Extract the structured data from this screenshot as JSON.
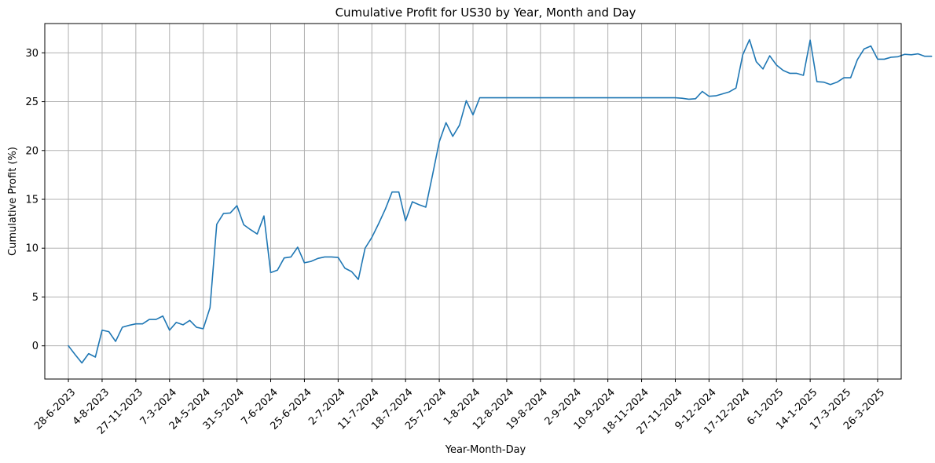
{
  "chart_data": {
    "type": "line",
    "title": "Cumulative Profit for US30 by Year, Month and Day",
    "xlabel": "Year-Month-Day",
    "ylabel": "Cumulative Profit (%)",
    "ylim": [
      -3.4,
      33.0
    ],
    "yticks": [
      0,
      5,
      10,
      15,
      20,
      25,
      30
    ],
    "grid": true,
    "line_color": "#1f77b4",
    "x_tick_positions": [
      0,
      5,
      10,
      15,
      20,
      25,
      30,
      35,
      40,
      45,
      50,
      55,
      60,
      65,
      70,
      75,
      80,
      85,
      90,
      95,
      100,
      105,
      110,
      115,
      120
    ],
    "x_tick_labels": [
      "28-6-2023",
      "4-8-2023",
      "27-11-2023",
      "7-3-2024",
      "24-5-2024",
      "31-5-2024",
      "7-6-2024",
      "25-6-2024",
      "2-7-2024",
      "11-7-2024",
      "18-7-2024",
      "25-7-2024",
      "1-8-2024",
      "12-8-2024",
      "19-8-2024",
      "2-9-2024",
      "10-9-2024",
      "18-11-2024",
      "27-11-2024",
      "9-12-2024",
      "17-12-2024",
      "6-1-2025",
      "14-1-2025",
      "17-3-2025",
      "26-3-2025"
    ],
    "xlim": [
      -3.5,
      123.5
    ],
    "series": [
      {
        "name": "",
        "values": [
          0.0,
          -0.9,
          -1.75,
          -0.8,
          -1.15,
          1.6,
          1.45,
          0.45,
          1.9,
          2.1,
          2.25,
          2.25,
          2.7,
          2.7,
          3.05,
          1.6,
          2.4,
          2.15,
          2.6,
          1.9,
          1.75,
          3.9,
          12.45,
          13.55,
          13.6,
          14.35,
          12.4,
          11.9,
          11.45,
          13.3,
          7.5,
          7.75,
          9.0,
          9.1,
          10.1,
          8.5,
          8.65,
          8.95,
          9.1,
          9.1,
          9.05,
          7.95,
          7.6,
          6.8,
          10.0,
          11.1,
          12.5,
          14.0,
          15.75,
          15.75,
          12.8,
          14.75,
          14.45,
          14.2,
          17.5,
          20.9,
          22.85,
          21.45,
          22.6,
          25.1,
          23.65,
          25.4,
          25.4,
          25.4,
          25.4,
          25.4,
          25.4,
          25.4,
          25.4,
          25.4,
          25.4,
          25.4,
          25.4,
          25.4,
          25.4,
          25.4,
          25.4,
          25.4,
          25.4,
          25.4,
          25.4,
          25.4,
          25.4,
          25.4,
          25.4,
          25.4,
          25.4,
          25.4,
          25.4,
          25.4,
          25.4,
          25.35,
          25.25,
          25.3,
          26.05,
          25.55,
          25.6,
          25.8,
          26.0,
          26.4,
          29.8,
          31.35,
          29.1,
          28.35,
          29.7,
          28.75,
          28.2,
          27.9,
          27.9,
          27.7,
          31.3,
          27.05,
          27.0,
          26.75,
          27.0,
          27.45,
          27.45,
          29.3,
          30.4,
          30.7,
          29.35,
          29.35,
          29.55,
          29.6,
          29.85,
          29.8,
          29.9,
          29.65,
          29.65
        ]
      }
    ]
  }
}
